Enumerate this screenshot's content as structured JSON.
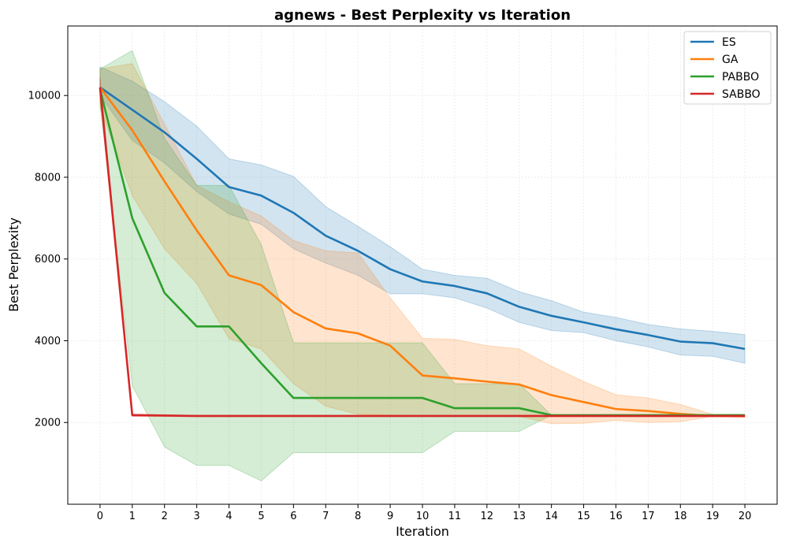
{
  "chart_data": {
    "type": "line",
    "title": "agnews - Best Perplexity vs Iteration",
    "xlabel": "Iteration",
    "ylabel": "Best Perplexity",
    "x": [
      0,
      1,
      2,
      3,
      4,
      5,
      6,
      7,
      8,
      9,
      10,
      11,
      12,
      13,
      14,
      15,
      16,
      17,
      18,
      19,
      20
    ],
    "xlim": [
      -1,
      21
    ],
    "ylim": [
      0,
      11700
    ],
    "yticks": [
      2000,
      4000,
      6000,
      8000,
      10000
    ],
    "grid": true,
    "legend_position": "top-right",
    "series": [
      {
        "name": "ES",
        "color": "#1f77b4",
        "values": [
          10200,
          9650,
          9100,
          8450,
          7760,
          7550,
          7130,
          6570,
          6200,
          5750,
          5450,
          5340,
          5160,
          4830,
          4610,
          4450,
          4280,
          4140,
          3980,
          3940,
          3800
        ],
        "lower": [
          10000,
          8900,
          8350,
          7650,
          7100,
          6850,
          6250,
          5900,
          5600,
          5150,
          5150,
          5050,
          4800,
          4450,
          4250,
          4200,
          4000,
          3850,
          3650,
          3620,
          3450
        ],
        "upper": [
          10700,
          10350,
          9850,
          9250,
          8450,
          8300,
          8020,
          7280,
          6800,
          6300,
          5750,
          5600,
          5530,
          5200,
          4980,
          4700,
          4570,
          4400,
          4290,
          4230,
          4150
        ]
      },
      {
        "name": "GA",
        "color": "#ff7f0e",
        "values": [
          10200,
          9150,
          7900,
          6700,
          5600,
          5360,
          4700,
          4300,
          4180,
          3880,
          3150,
          3080,
          3000,
          2930,
          2670,
          2500,
          2330,
          2280,
          2210,
          2160,
          2150
        ],
        "lower": [
          9700,
          7550,
          6250,
          5400,
          4050,
          3800,
          2950,
          2400,
          2200,
          2180,
          2150,
          2150,
          2150,
          2150,
          1970,
          1980,
          2050,
          2000,
          2020,
          2150,
          2150
        ],
        "upper": [
          10650,
          10780,
          9300,
          7800,
          7400,
          7050,
          6450,
          6200,
          6150,
          5050,
          4060,
          4030,
          3880,
          3800,
          3380,
          3000,
          2680,
          2600,
          2440,
          2200,
          2200
        ]
      },
      {
        "name": "PABBO",
        "color": "#2ca02c",
        "values": [
          10150,
          7000,
          5170,
          4350,
          4350,
          3450,
          2600,
          2600,
          2600,
          2600,
          2600,
          2350,
          2350,
          2350,
          2180,
          2180,
          2180,
          2180,
          2180,
          2180,
          2180
        ],
        "lower": [
          9800,
          2900,
          1400,
          950,
          950,
          570,
          1260,
          1260,
          1260,
          1260,
          1260,
          1780,
          1780,
          1780,
          2180,
          2180,
          2180,
          2180,
          2180,
          2180,
          2180
        ],
        "upper": [
          10650,
          11100,
          8950,
          7800,
          7800,
          6350,
          3950,
          3950,
          3950,
          3950,
          3950,
          2950,
          2950,
          2950,
          2180,
          2180,
          2180,
          2180,
          2180,
          2180,
          2180
        ]
      },
      {
        "name": "SABBO",
        "color": "#d62728",
        "values": [
          10200,
          2180,
          2170,
          2160,
          2160,
          2160,
          2160,
          2160,
          2160,
          2160,
          2160,
          2160,
          2160,
          2160,
          2160,
          2160,
          2160,
          2160,
          2160,
          2160,
          2160
        ],
        "lower": [
          9950,
          2150,
          2150,
          2140,
          2140,
          2140,
          2140,
          2140,
          2140,
          2140,
          2140,
          2140,
          2140,
          2140,
          2140,
          2140,
          2140,
          2140,
          2140,
          2140,
          2140
        ],
        "upper": [
          10450,
          2210,
          2190,
          2170,
          2170,
          2170,
          2170,
          2170,
          2170,
          2170,
          2170,
          2170,
          2170,
          2170,
          2170,
          2170,
          2170,
          2170,
          2170,
          2170,
          2170
        ]
      }
    ]
  }
}
